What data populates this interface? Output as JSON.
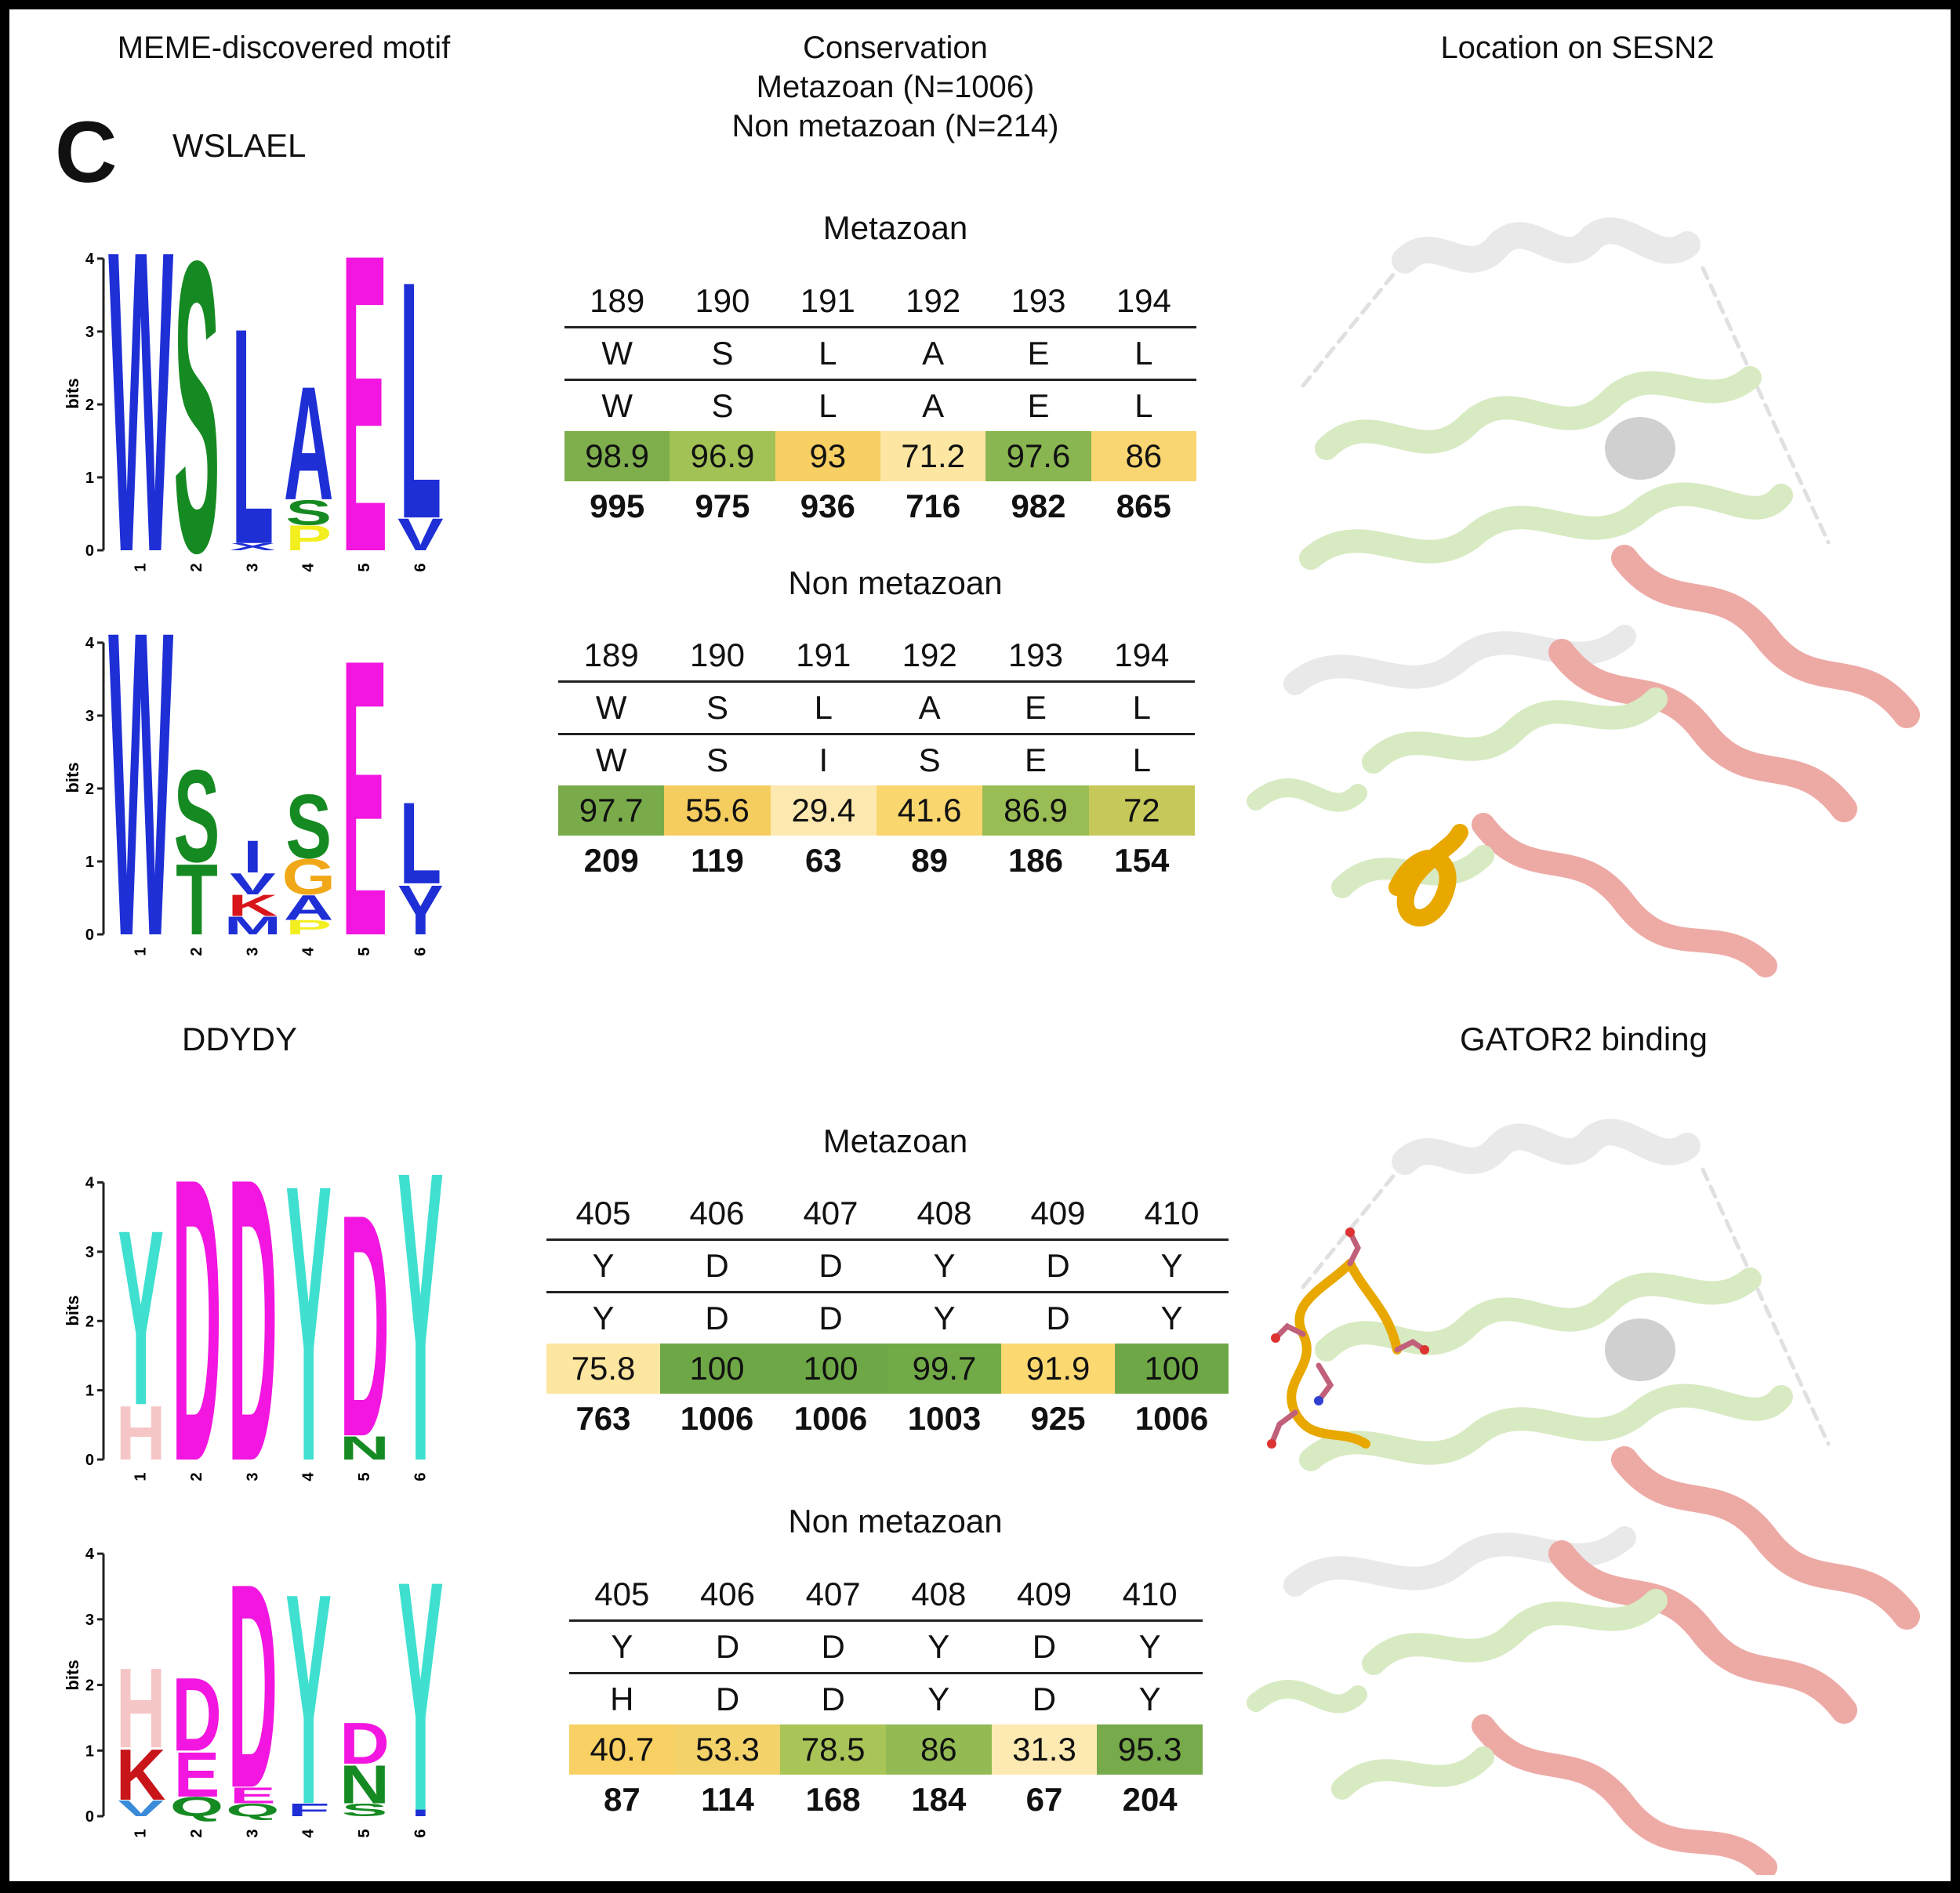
{
  "headers": {
    "col1": "MEME-discovered motif",
    "col2_line1": "Conservation",
    "col2_line2": "Metazoan (N=1006)",
    "col2_line3": "Non metazoan (N=214)",
    "col3": "Location on SESN2"
  },
  "panel_label": "C",
  "motifs": [
    {
      "name": "WSLAEL",
      "structure_label": "",
      "tables": [
        {
          "title": "Metazoan",
          "positions": [
            "189",
            "190",
            "191",
            "192",
            "193",
            "194"
          ],
          "reference": [
            "W",
            "S",
            "L",
            "A",
            "E",
            "L"
          ],
          "consensus": [
            "W",
            "S",
            "L",
            "A",
            "E",
            "L"
          ],
          "percent": [
            98.9,
            96.9,
            93,
            71.2,
            97.6,
            86
          ],
          "counts": [
            "995",
            "975",
            "936",
            "716",
            "982",
            "865"
          ],
          "colors": [
            "#7fae4d",
            "#a3c256",
            "#f7cf62",
            "#fce6a2",
            "#8ab651",
            "#fad672"
          ]
        },
        {
          "title": "Non metazoan",
          "positions": [
            "189",
            "190",
            "191",
            "192",
            "193",
            "194"
          ],
          "reference": [
            "W",
            "S",
            "L",
            "A",
            "E",
            "L"
          ],
          "consensus": [
            "W",
            "S",
            "I",
            "S",
            "E",
            "L"
          ],
          "percent": [
            97.7,
            55.6,
            29.4,
            41.6,
            86.9,
            72
          ],
          "counts": [
            "209",
            "119",
            "63",
            "89",
            "186",
            "154"
          ],
          "colors": [
            "#7aab4b",
            "#f5cd5f",
            "#fde9b0",
            "#fad66f",
            "#99bd54",
            "#c6c95a"
          ]
        }
      ]
    },
    {
      "name": "DDYDY",
      "structure_label": "GATOR2 binding",
      "tables": [
        {
          "title": "Metazoan",
          "positions": [
            "405",
            "406",
            "407",
            "408",
            "409",
            "410"
          ],
          "reference": [
            "Y",
            "D",
            "D",
            "Y",
            "D",
            "Y"
          ],
          "consensus": [
            "Y",
            "D",
            "D",
            "Y",
            "D",
            "Y"
          ],
          "percent": [
            75.8,
            100,
            100,
            99.7,
            91.9,
            100
          ],
          "counts": [
            "763",
            "1006",
            "1006",
            "1003",
            "925",
            "1006"
          ],
          "colors": [
            "#fde6a0",
            "#6ea846",
            "#6ea846",
            "#71aa47",
            "#fbd870",
            "#6ea846"
          ]
        },
        {
          "title": "Non metazoan",
          "positions": [
            "405",
            "406",
            "407",
            "408",
            "409",
            "410"
          ],
          "reference": [
            "Y",
            "D",
            "D",
            "Y",
            "D",
            "Y"
          ],
          "consensus": [
            "H",
            "D",
            "D",
            "Y",
            "D",
            "Y"
          ],
          "percent": [
            40.7,
            53.3,
            78.5,
            86,
            31.3,
            95.3
          ],
          "counts": [
            "87",
            "114",
            "168",
            "184",
            "67",
            "204"
          ],
          "colors": [
            "#f8d063",
            "#f3d26a",
            "#a9c457",
            "#93ba53",
            "#fde9b2",
            "#77aa4a"
          ]
        }
      ]
    }
  ],
  "logos": [
    {
      "ylabel": "bits",
      "yticks": [
        "0",
        "1",
        "2",
        "3",
        "4"
      ],
      "xticks": [
        "1",
        "2",
        "3",
        "4",
        "5",
        "6"
      ],
      "letters": [
        {
          "pos": 1,
          "stack": [
            {
              "ch": "W",
              "h": 4.25,
              "color": "#1f2fd6"
            }
          ]
        },
        {
          "pos": 2,
          "stack": [
            {
              "ch": "S",
              "h": 4.1,
              "color": "#168a22"
            }
          ]
        },
        {
          "pos": 3,
          "stack": [
            {
              "ch": "X",
              "h": 0.1,
              "color": "#1f2fd6"
            },
            {
              "ch": "L",
              "h": 3.05,
              "color": "#1f2fd6"
            }
          ]
        },
        {
          "pos": 4,
          "stack": [
            {
              "ch": "P",
              "h": 0.35,
              "color": "#f2ee20"
            },
            {
              "ch": "S",
              "h": 0.35,
              "color": "#168a22"
            },
            {
              "ch": "A",
              "h": 1.6,
              "color": "#1f2fd6"
            }
          ]
        },
        {
          "pos": 5,
          "stack": [
            {
              "ch": "E",
              "h": 4.2,
              "color": "#f216e0"
            }
          ]
        },
        {
          "pos": 6,
          "stack": [
            {
              "ch": "V",
              "h": 0.45,
              "color": "#1f2fd6"
            },
            {
              "ch": "L",
              "h": 3.35,
              "color": "#1f2fd6"
            }
          ]
        }
      ]
    },
    {
      "ylabel": "bits",
      "yticks": [
        "0",
        "1",
        "2",
        "3",
        "4"
      ],
      "xticks": [
        "1",
        "2",
        "3",
        "4",
        "5",
        "6"
      ],
      "letters": [
        {
          "pos": 1,
          "stack": [
            {
              "ch": "W",
              "h": 4.3,
              "color": "#1f2fd6"
            }
          ]
        },
        {
          "pos": 2,
          "stack": [
            {
              "ch": "T",
              "h": 1.0,
              "color": "#168a22"
            },
            {
              "ch": "S",
              "h": 1.3,
              "color": "#168a22"
            }
          ]
        },
        {
          "pos": 3,
          "stack": [
            {
              "ch": "M",
              "h": 0.25,
              "color": "#1f2fd6"
            },
            {
              "ch": "K",
              "h": 0.3,
              "color": "#d8151a"
            },
            {
              "ch": "V",
              "h": 0.3,
              "color": "#1f2fd6"
            },
            {
              "ch": "I",
              "h": 0.45,
              "color": "#1f2fd6"
            }
          ]
        },
        {
          "pos": 4,
          "stack": [
            {
              "ch": "P",
              "h": 0.2,
              "color": "#f2ee20"
            },
            {
              "ch": "A",
              "h": 0.35,
              "color": "#1f2fd6"
            },
            {
              "ch": "G",
              "h": 0.5,
              "color": "#f0a818"
            },
            {
              "ch": "S",
              "h": 0.9,
              "color": "#168a22"
            }
          ]
        },
        {
          "pos": 5,
          "stack": [
            {
              "ch": "E",
              "h": 3.9,
              "color": "#f216e0"
            }
          ]
        },
        {
          "pos": 6,
          "stack": [
            {
              "ch": "Y",
              "h": 0.7,
              "color": "#1f2fd6"
            },
            {
              "ch": "L",
              "h": 1.15,
              "color": "#1f2fd6"
            }
          ]
        }
      ]
    },
    {
      "ylabel": "bits",
      "yticks": [
        "0",
        "1",
        "2",
        "3",
        "4"
      ],
      "xticks": [
        "1",
        "2",
        "3",
        "4",
        "5",
        "6"
      ],
      "letters": [
        {
          "pos": 1,
          "stack": [
            {
              "ch": "H",
              "h": 0.8,
              "color": "#f6c6c6"
            },
            {
              "ch": "Y",
              "h": 2.6,
              "color": "#3fe0cf"
            }
          ]
        },
        {
          "pos": 2,
          "stack": [
            {
              "ch": "D",
              "h": 4.2,
              "color": "#f216e0"
            }
          ]
        },
        {
          "pos": 3,
          "stack": [
            {
              "ch": "D",
              "h": 4.2,
              "color": "#f216e0"
            }
          ]
        },
        {
          "pos": 4,
          "stack": [
            {
              "ch": "Y",
              "h": 4.1,
              "color": "#3fe0cf"
            }
          ]
        },
        {
          "pos": 5,
          "stack": [
            {
              "ch": "N",
              "h": 0.35,
              "color": "#168a22"
            },
            {
              "ch": "D",
              "h": 3.3,
              "color": "#f216e0"
            }
          ]
        },
        {
          "pos": 6,
          "stack": [
            {
              "ch": "Y",
              "h": 4.3,
              "color": "#3fe0cf"
            }
          ]
        }
      ]
    },
    {
      "ylabel": "bits",
      "yticks": [
        "0",
        "1",
        "2",
        "3",
        "4"
      ],
      "xticks": [
        "1",
        "2",
        "3",
        "4",
        "5",
        "6"
      ],
      "letters": [
        {
          "pos": 1,
          "stack": [
            {
              "ch": "V",
              "h": 0.25,
              "color": "#3a8bd8"
            },
            {
              "ch": "K",
              "h": 0.8,
              "color": "#c8151a"
            },
            {
              "ch": "H",
              "h": 1.25,
              "color": "#f6c6c6"
            }
          ]
        },
        {
          "pos": 2,
          "stack": [
            {
              "ch": "Q",
              "h": 0.3,
              "color": "#168a22"
            },
            {
              "ch": "E",
              "h": 0.7,
              "color": "#f216e0"
            },
            {
              "ch": "D",
              "h": 1.15,
              "color": "#f216e0"
            }
          ]
        },
        {
          "pos": 3,
          "stack": [
            {
              "ch": "Q",
              "h": 0.2,
              "color": "#168a22"
            },
            {
              "ch": "E",
              "h": 0.25,
              "color": "#f216e0"
            },
            {
              "ch": "D",
              "h": 3.2,
              "color": "#f216e0"
            }
          ]
        },
        {
          "pos": 4,
          "stack": [
            {
              "ch": "F",
              "h": 0.2,
              "color": "#1f2fd6"
            },
            {
              "ch": "Y",
              "h": 3.3,
              "color": "#3fe0cf"
            }
          ]
        },
        {
          "pos": 5,
          "stack": [
            {
              "ch": "S",
              "h": 0.2,
              "color": "#168a22"
            },
            {
              "ch": "N",
              "h": 0.6,
              "color": "#168a22"
            },
            {
              "ch": "D",
              "h": 0.65,
              "color": "#f216e0"
            }
          ]
        },
        {
          "pos": 6,
          "stack": [
            {
              "ch": "I",
              "h": 0.1,
              "color": "#1f2fd6"
            },
            {
              "ch": "Y",
              "h": 3.6,
              "color": "#3fe0cf"
            }
          ]
        }
      ]
    }
  ]
}
